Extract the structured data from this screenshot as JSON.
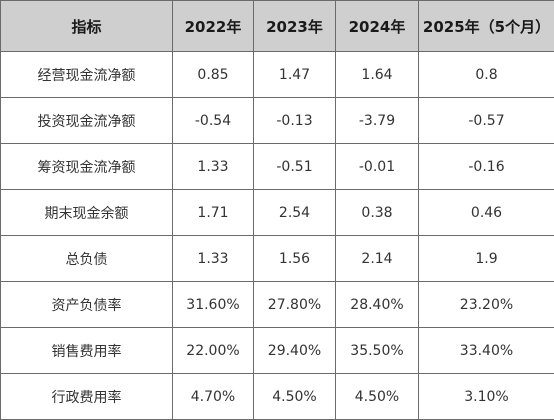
{
  "table": {
    "headers": [
      "指标",
      "2022年",
      "2023年",
      "2024年",
      "2025年（5个月）"
    ],
    "rows": [
      {
        "label": "经营现金流净额",
        "values": [
          "0.85",
          "1.47",
          "1.64",
          "0.8"
        ]
      },
      {
        "label": "投资现金流净额",
        "values": [
          "-0.54",
          "-0.13",
          "-3.79",
          "-0.57"
        ]
      },
      {
        "label": "筹资现金流净额",
        "values": [
          "1.33",
          "-0.51",
          "-0.01",
          "-0.16"
        ]
      },
      {
        "label": "期末现金余额",
        "values": [
          "1.71",
          "2.54",
          "0.38",
          "0.46"
        ]
      },
      {
        "label": "总负债",
        "values": [
          "1.33",
          "1.56",
          "2.14",
          "1.9"
        ]
      },
      {
        "label": "资产负债率",
        "values": [
          "31.60%",
          "27.80%",
          "28.40%",
          "23.20%"
        ]
      },
      {
        "label": "销售费用率",
        "values": [
          "22.00%",
          "29.40%",
          "35.50%",
          "33.40%"
        ]
      },
      {
        "label": "行政费用率",
        "values": [
          "4.70%",
          "4.50%",
          "4.50%",
          "3.10%"
        ]
      }
    ]
  }
}
